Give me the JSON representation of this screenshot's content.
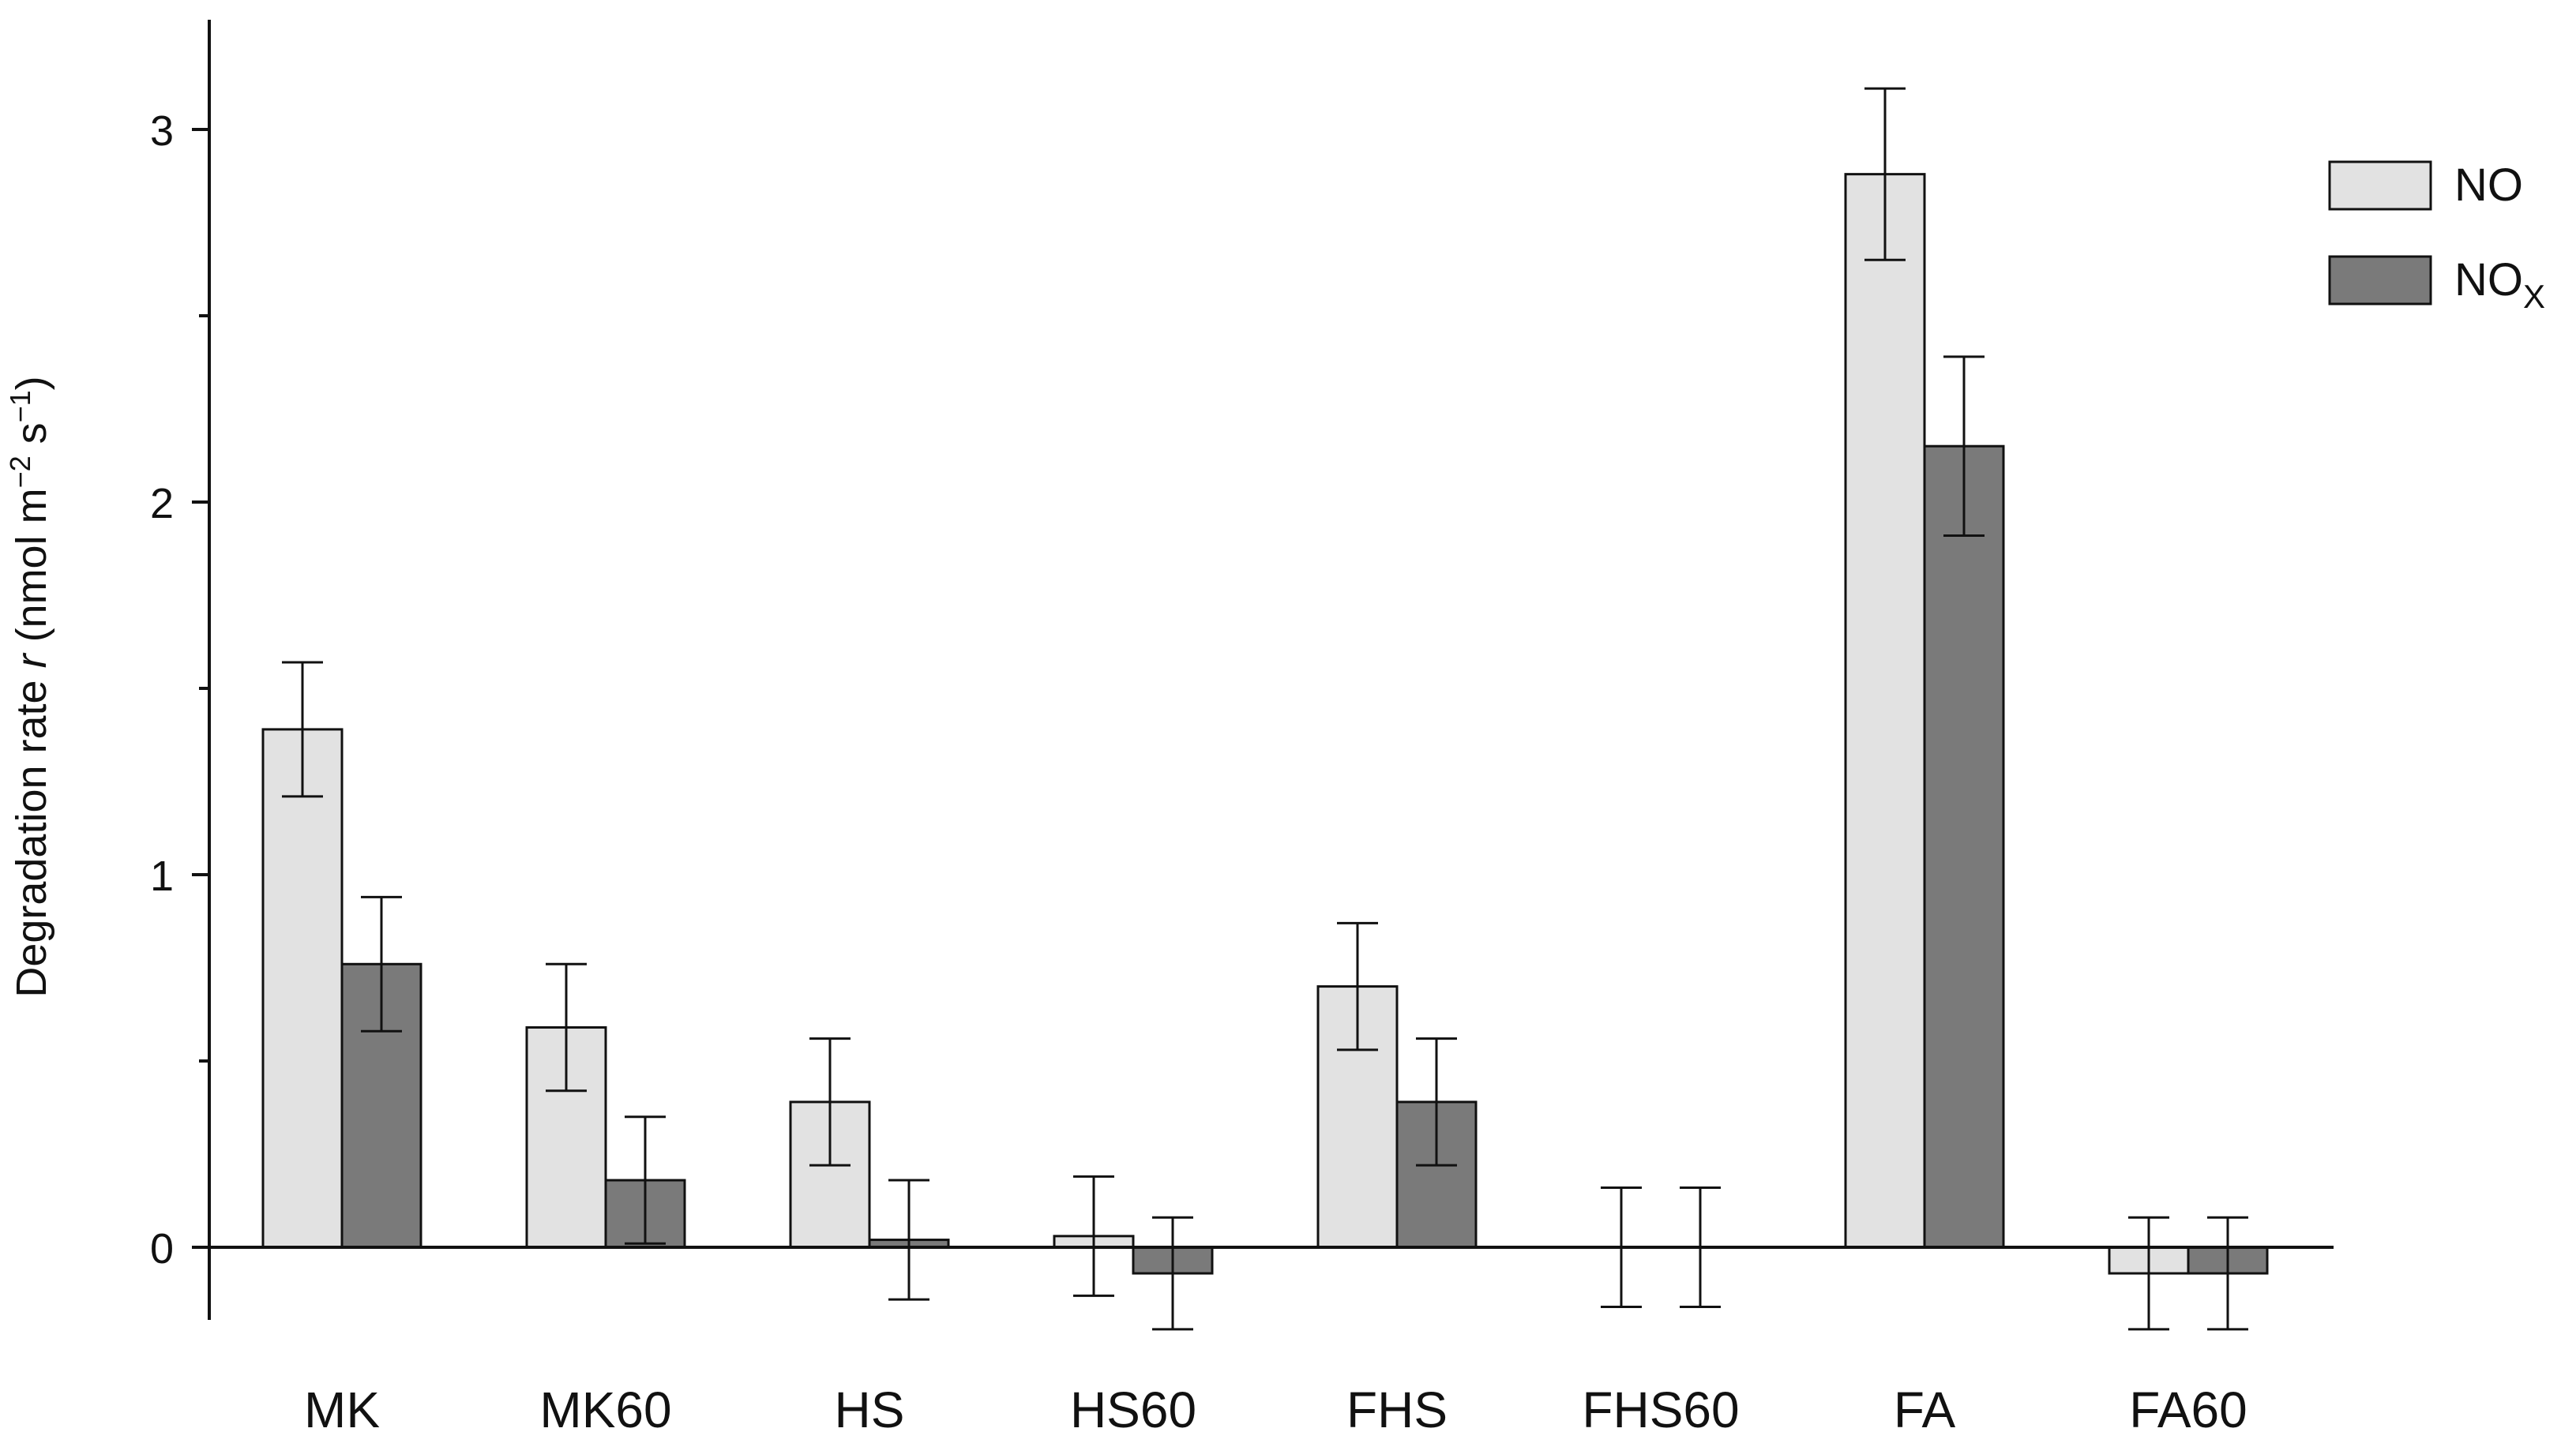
{
  "chart_data": {
    "type": "bar",
    "categories": [
      "MK",
      "MK60",
      "HS",
      "HS60",
      "FHS",
      "FHS60",
      "FA",
      "FA60"
    ],
    "series": [
      {
        "name": "NO",
        "legend_text": "NO",
        "color": "#e2e2e2",
        "values": [
          1.39,
          0.59,
          0.39,
          0.03,
          0.7,
          0.0,
          2.88,
          -0.07
        ],
        "error": [
          0.18,
          0.17,
          0.17,
          0.16,
          0.17,
          0.16,
          0.23,
          0.15
        ]
      },
      {
        "name": "NOx",
        "legend_text": "NO",
        "legend_sub": "X",
        "color": "#7a7a7a",
        "values": [
          0.76,
          0.18,
          0.02,
          -0.07,
          0.39,
          0.0,
          2.15,
          -0.07
        ],
        "error": [
          0.18,
          0.17,
          0.16,
          0.15,
          0.17,
          0.16,
          0.24,
          0.15
        ]
      }
    ],
    "ylabel": "Degradation rate r (nmol m−2 s−1)",
    "ylabel_parts": {
      "lead": "Degradation rate ",
      "var": "r",
      "unit_open": " (nmol m",
      "sup1": "−2",
      "mid": " s",
      "sup2": "−1",
      "close": ")"
    },
    "xlabel": "",
    "ylim": [
      -0.2,
      3.3
    ],
    "yticks": [
      "0",
      "1",
      "2",
      "3"
    ],
    "legend_position": "top-right",
    "grid": false
  }
}
